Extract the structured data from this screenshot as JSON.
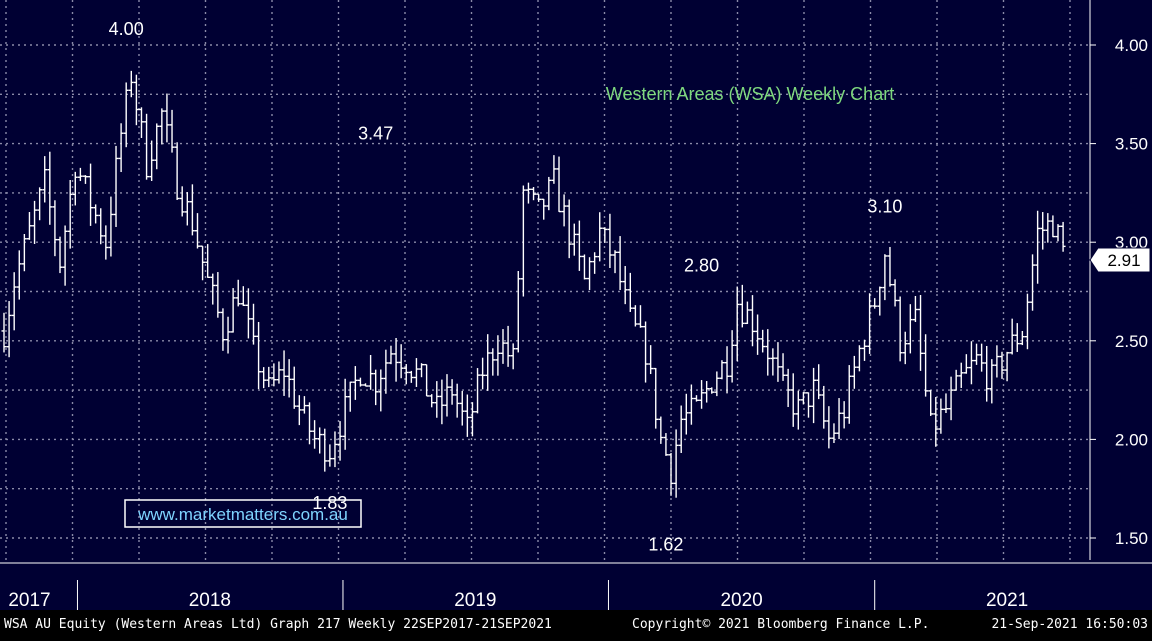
{
  "chart_data": {
    "type": "ohlc",
    "title": "Western Areas (WSA) Weekly Chart",
    "ylim": [
      1.45,
      4.2
    ],
    "y_ticks": [
      1.5,
      2.0,
      2.5,
      3.0,
      3.5,
      4.0
    ],
    "y_tick_labels": [
      "1.50",
      "2.00",
      "2.50",
      "3.00",
      "3.50",
      "4.00"
    ],
    "x_range": [
      "2017-09-22",
      "2021-09-21"
    ],
    "x_tick_labels": [
      {
        "label": "2017",
        "date": "2017-10-27"
      },
      {
        "label": "2018",
        "date": "2018-07-02"
      },
      {
        "label": "2019",
        "date": "2019-07-02"
      },
      {
        "label": "2020",
        "date": "2020-07-02"
      },
      {
        "label": "2021",
        "date": "2021-07-02"
      }
    ],
    "year_boundaries": [
      "2018-01-01",
      "2019-01-01",
      "2020-01-01",
      "2021-01-01"
    ],
    "grid": true,
    "last_price": 2.91,
    "last_price_label": "2.91",
    "annotations": [
      {
        "text": "4.00",
        "date": "2018-03-09",
        "value": 4.0
      },
      {
        "text": "3.47",
        "date": "2019-02-15",
        "value": 3.47
      },
      {
        "text": "1.83",
        "date": "2018-12-14",
        "value": 1.83
      },
      {
        "text": "1.62",
        "date": "2020-03-20",
        "value": 1.62
      },
      {
        "text": "2.80",
        "date": "2020-05-08",
        "value": 2.8
      },
      {
        "text": "3.10",
        "date": "2021-01-15",
        "value": 3.1
      }
    ],
    "watermark": "www.marketmatters.com.au",
    "close_path": [
      [
        "2017-09-22",
        2.55
      ],
      [
        "2017-10-06",
        2.8
      ],
      [
        "2017-10-27",
        3.05
      ],
      [
        "2017-11-17",
        3.3
      ],
      [
        "2017-12-08",
        2.9
      ],
      [
        "2017-12-29",
        3.4
      ],
      [
        "2018-01-19",
        3.2
      ],
      [
        "2018-02-09",
        3.0
      ],
      [
        "2018-03-02",
        3.55
      ],
      [
        "2018-03-16",
        3.85
      ],
      [
        "2018-04-06",
        3.4
      ],
      [
        "2018-04-27",
        3.65
      ],
      [
        "2018-05-18",
        3.3
      ],
      [
        "2018-06-08",
        3.1
      ],
      [
        "2018-06-29",
        2.8
      ],
      [
        "2018-07-20",
        2.55
      ],
      [
        "2018-08-10",
        2.75
      ],
      [
        "2018-08-31",
        2.45
      ],
      [
        "2018-09-21",
        2.25
      ],
      [
        "2018-10-12",
        2.35
      ],
      [
        "2018-11-02",
        2.15
      ],
      [
        "2018-11-23",
        2.0
      ],
      [
        "2018-12-14",
        1.95
      ],
      [
        "2019-01-04",
        2.15
      ],
      [
        "2019-01-25",
        2.35
      ],
      [
        "2019-02-15",
        2.3
      ],
      [
        "2019-03-08",
        2.45
      ],
      [
        "2019-03-29",
        2.4
      ],
      [
        "2019-04-19",
        2.3
      ],
      [
        "2019-05-10",
        2.15
      ],
      [
        "2019-05-31",
        2.25
      ],
      [
        "2019-06-21",
        2.05
      ],
      [
        "2019-07-12",
        2.35
      ],
      [
        "2019-08-02",
        2.5
      ],
      [
        "2019-08-23",
        2.4
      ],
      [
        "2019-09-06",
        3.25
      ],
      [
        "2019-09-27",
        3.15
      ],
      [
        "2019-10-18",
        3.3
      ],
      [
        "2019-11-08",
        3.05
      ],
      [
        "2019-11-29",
        2.8
      ],
      [
        "2019-12-20",
        3.05
      ],
      [
        "2020-01-10",
        2.9
      ],
      [
        "2020-01-31",
        2.6
      ],
      [
        "2020-02-21",
        2.45
      ],
      [
        "2020-03-13",
        2.0
      ],
      [
        "2020-03-27",
        1.85
      ],
      [
        "2020-04-10",
        2.1
      ],
      [
        "2020-05-01",
        2.15
      ],
      [
        "2020-05-22",
        2.3
      ],
      [
        "2020-06-12",
        2.4
      ],
      [
        "2020-06-26",
        2.7
      ],
      [
        "2020-07-17",
        2.6
      ],
      [
        "2020-08-07",
        2.45
      ],
      [
        "2020-08-28",
        2.25
      ],
      [
        "2020-09-18",
        2.15
      ],
      [
        "2020-10-09",
        2.25
      ],
      [
        "2020-10-30",
        2.0
      ],
      [
        "2020-11-20",
        2.15
      ],
      [
        "2020-12-11",
        2.45
      ],
      [
        "2021-01-01",
        2.7
      ],
      [
        "2021-01-15",
        2.95
      ],
      [
        "2021-02-05",
        2.5
      ],
      [
        "2021-02-26",
        2.6
      ],
      [
        "2021-03-19",
        2.05
      ],
      [
        "2021-04-09",
        2.15
      ],
      [
        "2021-04-30",
        2.3
      ],
      [
        "2021-05-21",
        2.4
      ],
      [
        "2021-06-11",
        2.3
      ],
      [
        "2021-07-02",
        2.45
      ],
      [
        "2021-07-23",
        2.55
      ],
      [
        "2021-08-13",
        3.05
      ],
      [
        "2021-09-03",
        3.1
      ],
      [
        "2021-09-21",
        2.91
      ]
    ]
  },
  "footer": {
    "left": "WSA AU Equity (Western Areas Ltd) Graph 217  Weekly 22SEP2017-21SEP2021",
    "center": "Copyright© 2021 Bloomberg Finance L.P.",
    "right": "21-Sep-2021 16:50:03"
  },
  "colors": {
    "background": "#000033",
    "grid": "#8a8aa8",
    "bars": "#ffffff",
    "title": "#7ed87e",
    "watermark_border": "#ffffff",
    "watermark_text": "#7fd4ff",
    "footer_band": "#000000"
  }
}
